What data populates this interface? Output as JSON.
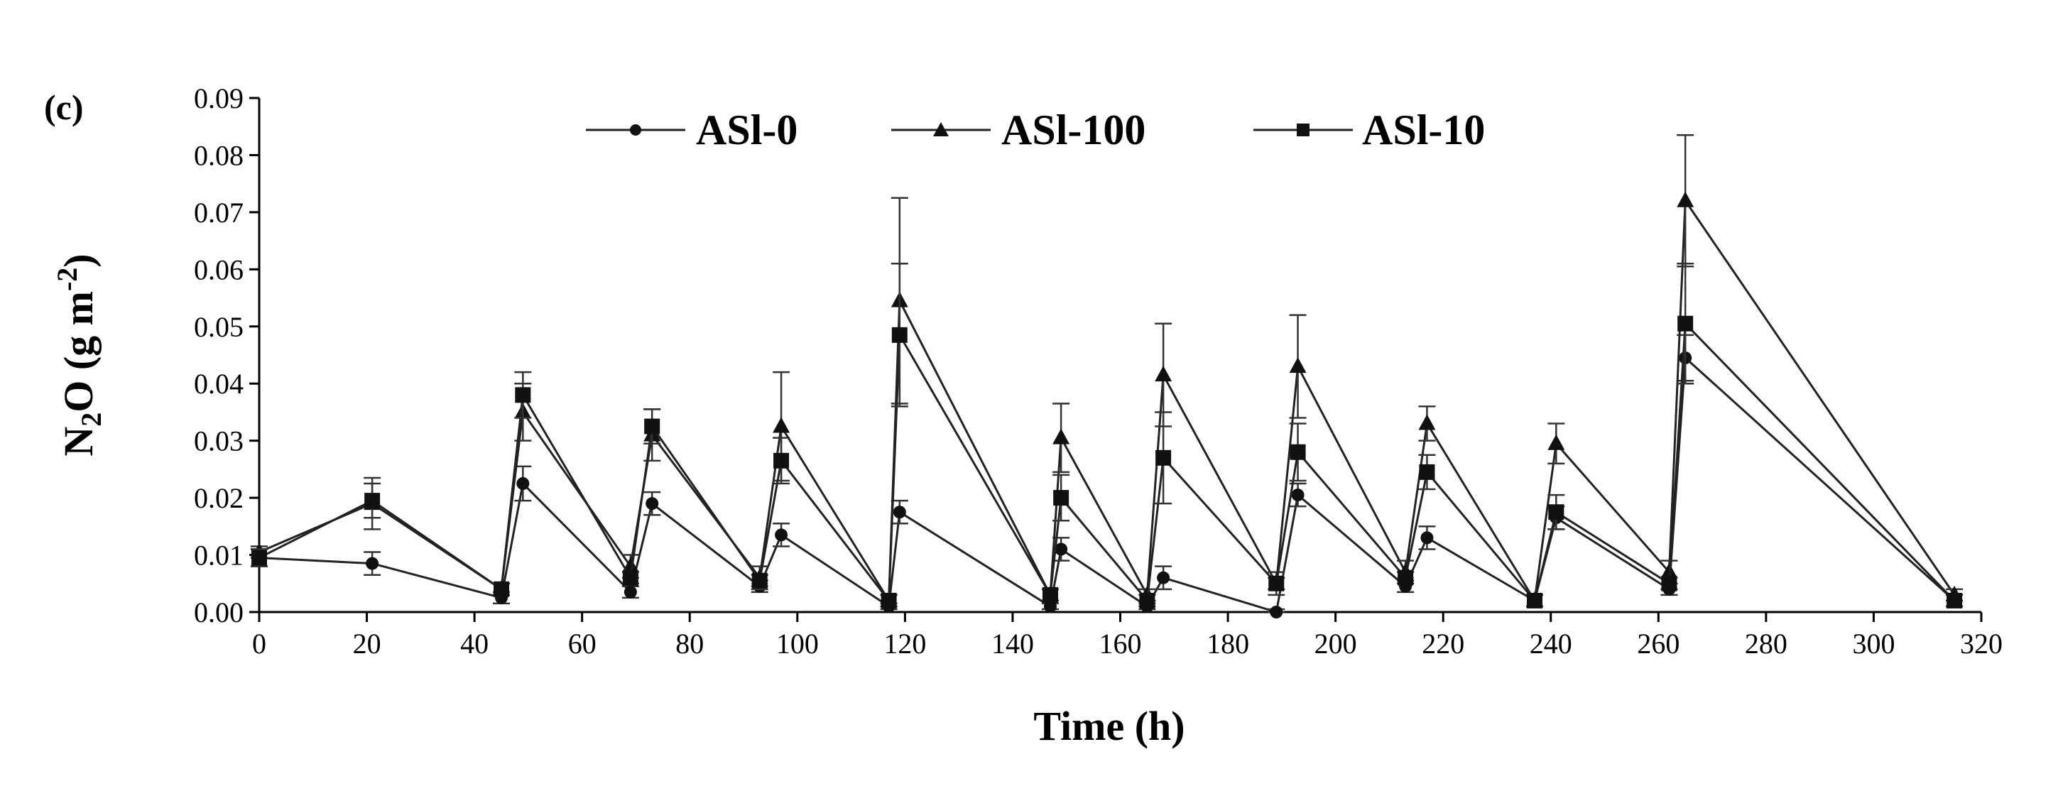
{
  "chart_data": {
    "type": "line",
    "panel_label": "(c)",
    "title": "",
    "xlabel": "Time (h)",
    "ylabel": "N2O (g m-2)",
    "ylabel_parts": {
      "base": "N",
      "sub": "2",
      "mid": "O (g m",
      "sup": "-2",
      "end": ")"
    },
    "xlim": [
      0,
      320
    ],
    "ylim": [
      0,
      0.09
    ],
    "x_ticks": [
      0,
      20,
      40,
      60,
      80,
      100,
      120,
      140,
      160,
      180,
      200,
      220,
      240,
      260,
      280,
      300,
      320
    ],
    "y_ticks": [
      0.0,
      0.01,
      0.02,
      0.03,
      0.04,
      0.05,
      0.06,
      0.07,
      0.08,
      0.09
    ],
    "y_tick_labels": [
      "0.00",
      "0.01",
      "0.02",
      "0.03",
      "0.04",
      "0.05",
      "0.06",
      "0.07",
      "0.08",
      "0.09"
    ],
    "legend_position": "top-center",
    "x": [
      0,
      21,
      45,
      49,
      69,
      73,
      93,
      97,
      117,
      119,
      147,
      149,
      165,
      168,
      189,
      193,
      213,
      217,
      237,
      241,
      262,
      265,
      315
    ],
    "series": [
      {
        "name": "ASl-0",
        "marker": "circle",
        "values": [
          0.0095,
          0.0085,
          0.0025,
          0.0225,
          0.0035,
          0.019,
          0.0045,
          0.0135,
          0.001,
          0.0175,
          0.001,
          0.011,
          0.001,
          0.006,
          0.0,
          0.0205,
          0.0045,
          0.013,
          0.002,
          0.0165,
          0.004,
          0.0445,
          0.002
        ],
        "errors": [
          0.0015,
          0.002,
          0.001,
          0.003,
          0.001,
          0.002,
          0.001,
          0.002,
          0.0005,
          0.002,
          0.0005,
          0.002,
          0.0005,
          0.002,
          0.0005,
          0.002,
          0.001,
          0.002,
          0.001,
          0.002,
          0.001,
          0.004,
          0.001
        ]
      },
      {
        "name": "ASl-100",
        "marker": "triangle",
        "values": [
          0.0105,
          0.019,
          0.004,
          0.035,
          0.008,
          0.031,
          0.006,
          0.0325,
          0.002,
          0.0545,
          0.003,
          0.0305,
          0.003,
          0.0415,
          0.005,
          0.043,
          0.007,
          0.033,
          0.002,
          0.0295,
          0.007,
          0.072,
          0.003
        ],
        "errors": [
          0.001,
          0.0045,
          0.001,
          0.005,
          0.002,
          0.0045,
          0.002,
          0.0095,
          0.001,
          0.018,
          0.001,
          0.006,
          0.001,
          0.009,
          0.002,
          0.009,
          0.002,
          0.003,
          0.001,
          0.0035,
          0.002,
          0.0115,
          0.001
        ]
      },
      {
        "name": "ASl-10",
        "marker": "square",
        "values": [
          0.0095,
          0.0195,
          0.004,
          0.038,
          0.006,
          0.0325,
          0.0055,
          0.0265,
          0.002,
          0.0485,
          0.003,
          0.02,
          0.002,
          0.027,
          0.005,
          0.028,
          0.006,
          0.0245,
          0.002,
          0.0175,
          0.005,
          0.0505,
          0.002
        ],
        "errors": [
          0.0015,
          0.003,
          0.001,
          0.004,
          0.001,
          0.003,
          0.001,
          0.004,
          0.001,
          0.0125,
          0.001,
          0.004,
          0.001,
          0.008,
          0.001,
          0.005,
          0.001,
          0.003,
          0.001,
          0.003,
          0.001,
          0.0105,
          0.001
        ]
      }
    ]
  }
}
